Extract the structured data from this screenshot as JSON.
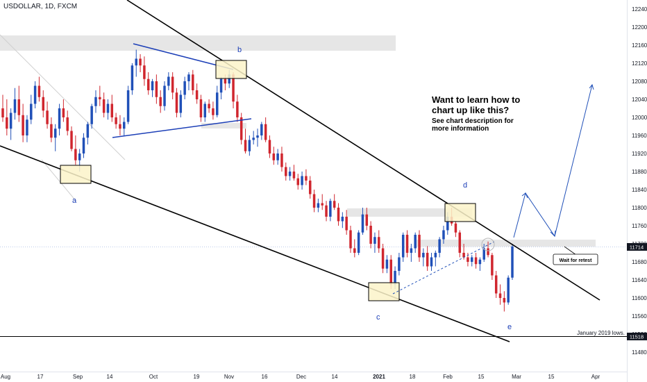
{
  "symbol_label": "USDOLLAR, 1D, FXCM",
  "promo": {
    "headline": "Want to learn how to chart up like this?",
    "subline": "See chart description for more information"
  },
  "annotations": {
    "retest": "Wait for retest",
    "jan_lows": "January 2019 lows."
  },
  "colors": {
    "up": "#2050b8",
    "down": "#d0262e",
    "trendline": "#000000",
    "wave_label": "#1c3fb7",
    "triangle": "#1c3fb7",
    "zone": "#e6e6e6",
    "box": "#fbf3c9",
    "projection": "#2050b8",
    "price_tag": "#131722"
  },
  "chart_data": {
    "type": "candlestick",
    "interval": "1D",
    "ylim": [
      11440,
      12260
    ],
    "y_ticks": [
      12240,
      12200,
      12160,
      12120,
      12080,
      12040,
      12000,
      11960,
      11920,
      11880,
      11840,
      11800,
      11760,
      11720,
      11680,
      11640,
      11600,
      11560,
      11520,
      11480
    ],
    "x_ticks": [
      "Aug",
      "17",
      "Sep",
      "14",
      "Oct",
      "19",
      "Nov",
      "16",
      "Dec",
      "14",
      "2021",
      "18",
      "Feb",
      "15",
      "Mar",
      "15",
      "Apr"
    ],
    "last_price": "11714",
    "level_price": "11518",
    "wave_labels": [
      "a",
      "b",
      "c",
      "d",
      "e"
    ],
    "candles": [
      [
        12020,
        12050,
        11990,
        12000
      ],
      [
        12000,
        12040,
        11960,
        11975
      ],
      [
        11975,
        12020,
        11950,
        12010
      ],
      [
        12010,
        12065,
        11995,
        12040
      ],
      [
        12040,
        12070,
        11990,
        12005
      ],
      [
        12005,
        12030,
        11945,
        11960
      ],
      [
        11960,
        12005,
        11945,
        11995
      ],
      [
        11995,
        12050,
        11985,
        12030
      ],
      [
        12030,
        12080,
        12020,
        12070
      ],
      [
        12070,
        12090,
        12035,
        12045
      ],
      [
        12045,
        12060,
        12000,
        12015
      ],
      [
        12015,
        12035,
        11975,
        11985
      ],
      [
        11985,
        12000,
        11945,
        11955
      ],
      [
        11955,
        11985,
        11925,
        11975
      ],
      [
        11975,
        12030,
        11960,
        12020
      ],
      [
        12020,
        12040,
        11990,
        12000
      ],
      [
        12000,
        12015,
        11960,
        11970
      ],
      [
        11970,
        11980,
        11925,
        11930
      ],
      [
        11930,
        11960,
        11895,
        11905
      ],
      [
        11905,
        11930,
        11880,
        11920
      ],
      [
        11920,
        11965,
        11910,
        11955
      ],
      [
        11955,
        11990,
        11940,
        11985
      ],
      [
        11985,
        12030,
        11975,
        12025
      ],
      [
        12025,
        12060,
        12010,
        12045
      ],
      [
        12045,
        12070,
        12025,
        12040
      ],
      [
        12040,
        12055,
        12000,
        12010
      ],
      [
        12010,
        12040,
        11995,
        12030
      ],
      [
        12030,
        12050,
        11990,
        12000
      ],
      [
        12000,
        12010,
        11975,
        11985
      ],
      [
        11985,
        12005,
        11960,
        11975
      ],
      [
        11975,
        12000,
        11960,
        11990
      ],
      [
        11990,
        12070,
        11985,
        12060
      ],
      [
        12060,
        12120,
        12050,
        12115
      ],
      [
        12115,
        12150,
        12090,
        12130
      ],
      [
        12130,
        12140,
        12100,
        12115
      ],
      [
        12115,
        12135,
        12070,
        12085
      ],
      [
        12085,
        12100,
        12050,
        12060
      ],
      [
        12060,
        12085,
        12045,
        12080
      ],
      [
        12080,
        12095,
        12030,
        12045
      ],
      [
        12045,
        12060,
        12010,
        12025
      ],
      [
        12025,
        12080,
        12015,
        12070
      ],
      [
        12070,
        12100,
        12060,
        12090
      ],
      [
        12090,
        12100,
        12040,
        12055
      ],
      [
        12055,
        12065,
        12000,
        12010
      ],
      [
        12010,
        12060,
        12000,
        12050
      ],
      [
        12050,
        12090,
        12040,
        12080
      ],
      [
        12080,
        12100,
        12060,
        12095
      ],
      [
        12095,
        12105,
        12050,
        12060
      ],
      [
        12060,
        12075,
        12030,
        12040
      ],
      [
        12040,
        12050,
        11990,
        12000
      ],
      [
        12000,
        12035,
        11990,
        12030
      ],
      [
        12030,
        12040,
        12010,
        12020
      ],
      [
        12020,
        12035,
        11995,
        12005
      ],
      [
        12005,
        12070,
        12000,
        12055
      ],
      [
        12055,
        12090,
        12040,
        12085
      ],
      [
        12085,
        12095,
        12060,
        12075
      ],
      [
        12075,
        12105,
        12065,
        12095
      ],
      [
        12095,
        12100,
        12020,
        12035
      ],
      [
        12035,
        12050,
        11990,
        12000
      ],
      [
        12000,
        12010,
        11940,
        11950
      ],
      [
        11950,
        11975,
        11920,
        11925
      ],
      [
        11925,
        11960,
        11915,
        11950
      ],
      [
        11950,
        11970,
        11940,
        11955
      ],
      [
        11955,
        11975,
        11935,
        11960
      ],
      [
        11960,
        11990,
        11950,
        11985
      ],
      [
        11985,
        12000,
        11945,
        11950
      ],
      [
        11950,
        11960,
        11910,
        11920
      ],
      [
        11920,
        11935,
        11895,
        11905
      ],
      [
        11905,
        11930,
        11895,
        11920
      ],
      [
        11920,
        11935,
        11880,
        11890
      ],
      [
        11890,
        11900,
        11860,
        11870
      ],
      [
        11870,
        11890,
        11860,
        11880
      ],
      [
        11880,
        11895,
        11860,
        11865
      ],
      [
        11865,
        11875,
        11840,
        11850
      ],
      [
        11850,
        11880,
        11840,
        11870
      ],
      [
        11870,
        11885,
        11850,
        11860
      ],
      [
        11860,
        11870,
        11820,
        11830
      ],
      [
        11830,
        11840,
        11790,
        11800
      ],
      [
        11800,
        11820,
        11790,
        11810
      ],
      [
        11810,
        11830,
        11795,
        11805
      ],
      [
        11805,
        11815,
        11770,
        11780
      ],
      [
        11780,
        11820,
        11770,
        11815
      ],
      [
        11815,
        11830,
        11795,
        11800
      ],
      [
        11800,
        11810,
        11760,
        11770
      ],
      [
        11770,
        11790,
        11755,
        11780
      ],
      [
        11780,
        11795,
        11740,
        11750
      ],
      [
        11750,
        11760,
        11700,
        11710
      ],
      [
        11710,
        11730,
        11690,
        11700
      ],
      [
        11700,
        11750,
        11695,
        11745
      ],
      [
        11745,
        11800,
        11740,
        11785
      ],
      [
        11785,
        11800,
        11750,
        11760
      ],
      [
        11760,
        11770,
        11710,
        11720
      ],
      [
        11720,
        11745,
        11700,
        11735
      ],
      [
        11735,
        11750,
        11700,
        11710
      ],
      [
        11710,
        11720,
        11655,
        11665
      ],
      [
        11665,
        11695,
        11655,
        11685
      ],
      [
        11685,
        11695,
        11620,
        11630
      ],
      [
        11630,
        11670,
        11620,
        11660
      ],
      [
        11660,
        11700,
        11650,
        11690
      ],
      [
        11690,
        11745,
        11680,
        11740
      ],
      [
        11740,
        11750,
        11690,
        11700
      ],
      [
        11700,
        11720,
        11680,
        11710
      ],
      [
        11710,
        11745,
        11700,
        11740
      ],
      [
        11740,
        11750,
        11680,
        11690
      ],
      [
        11690,
        11710,
        11670,
        11700
      ],
      [
        11700,
        11715,
        11660,
        11670
      ],
      [
        11670,
        11700,
        11660,
        11690
      ],
      [
        11690,
        11705,
        11670,
        11700
      ],
      [
        11700,
        11735,
        11690,
        11730
      ],
      [
        11730,
        11760,
        11720,
        11750
      ],
      [
        11750,
        11790,
        11740,
        11780
      ],
      [
        11780,
        11800,
        11760,
        11765
      ],
      [
        11765,
        11770,
        11735,
        11745
      ],
      [
        11745,
        11750,
        11690,
        11700
      ],
      [
        11700,
        11720,
        11685,
        11690
      ],
      [
        11690,
        11700,
        11670,
        11680
      ],
      [
        11680,
        11695,
        11670,
        11690
      ],
      [
        11690,
        11700,
        11665,
        11675
      ],
      [
        11675,
        11690,
        11660,
        11685
      ],
      [
        11685,
        11720,
        11680,
        11710
      ],
      [
        11710,
        11725,
        11690,
        11695
      ],
      [
        11695,
        11700,
        11640,
        11650
      ],
      [
        11650,
        11660,
        11600,
        11610
      ],
      [
        11610,
        11630,
        11585,
        11600
      ],
      [
        11600,
        11615,
        11570,
        11590
      ],
      [
        11590,
        11650,
        11585,
        11645
      ],
      [
        11645,
        11720,
        11640,
        11714
      ]
    ]
  }
}
